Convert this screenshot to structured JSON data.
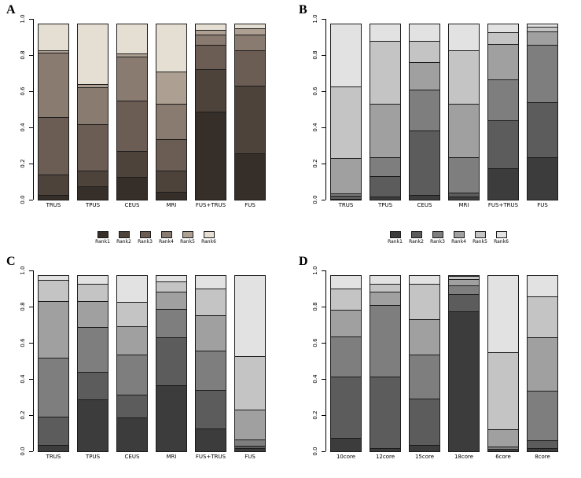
{
  "legend": {
    "labels": [
      "Rank1",
      "Rank2",
      "Rank3",
      "Rank4",
      "Rank5",
      "Rank6"
    ]
  },
  "palettes": {
    "brown": [
      "#352e29",
      "#4e433b",
      "#6b5d54",
      "#8a7b71",
      "#ada092",
      "#e4ded3"
    ],
    "gray": [
      "#3c3c3c",
      "#5c5c5c",
      "#7e7e7e",
      "#a0a0a0",
      "#c4c4c4",
      "#e2e2e2"
    ]
  },
  "chart_data": [
    {
      "type": "bar",
      "stacked": true,
      "panel": "A",
      "palette": "brown",
      "ylim": [
        0,
        1
      ],
      "yticks": [
        0,
        0.2,
        0.4,
        0.6,
        0.8,
        1
      ],
      "categories": [
        "TRUS",
        "TPUS",
        "CEUS",
        "MRI",
        "FUS+TRUS",
        "FUS"
      ],
      "series": [
        {
          "name": "Rank1",
          "values": [
            0.03,
            0.08,
            0.13,
            0.05,
            0.49,
            0.26
          ]
        },
        {
          "name": "Rank2",
          "values": [
            0.12,
            0.09,
            0.15,
            0.12,
            0.24,
            0.38
          ]
        },
        {
          "name": "Rank3",
          "values": [
            0.32,
            0.26,
            0.28,
            0.18,
            0.14,
            0.2
          ]
        },
        {
          "name": "Rank4",
          "values": [
            0.36,
            0.21,
            0.25,
            0.2,
            0.06,
            0.09
          ]
        },
        {
          "name": "Rank5",
          "values": [
            0.02,
            0.02,
            0.02,
            0.18,
            0.03,
            0.04
          ]
        },
        {
          "name": "Rank6",
          "values": [
            0.15,
            0.34,
            0.17,
            0.27,
            0.04,
            0.03
          ]
        }
      ]
    },
    {
      "type": "bar",
      "stacked": true,
      "panel": "B",
      "palette": "gray",
      "ylim": [
        0,
        1
      ],
      "yticks": [
        0,
        0.2,
        0.4,
        0.6,
        0.8,
        1
      ],
      "categories": [
        "TRUS",
        "TPUS",
        "CEUS",
        "MRI",
        "FUS+TRUS",
        "FUS"
      ],
      "series": [
        {
          "name": "Rank1",
          "values": [
            0.01,
            0.02,
            0.03,
            0.02,
            0.18,
            0.24
          ]
        },
        {
          "name": "Rank2",
          "values": [
            0.02,
            0.12,
            0.36,
            0.03,
            0.27,
            0.31
          ]
        },
        {
          "name": "Rank3",
          "values": [
            0.02,
            0.11,
            0.23,
            0.2,
            0.23,
            0.32
          ]
        },
        {
          "name": "Rank4",
          "values": [
            0.2,
            0.3,
            0.16,
            0.3,
            0.2,
            0.08
          ]
        },
        {
          "name": "Rank5",
          "values": [
            0.4,
            0.35,
            0.12,
            0.3,
            0.07,
            0.03
          ]
        },
        {
          "name": "Rank6",
          "values": [
            0.35,
            0.1,
            0.1,
            0.15,
            0.05,
            0.02
          ]
        }
      ]
    },
    {
      "type": "bar",
      "stacked": true,
      "panel": "C",
      "palette": "gray",
      "ylim": [
        0,
        1
      ],
      "yticks": [
        0,
        0.2,
        0.4,
        0.6,
        0.8,
        1
      ],
      "categories": [
        "TRUS",
        "TPUS",
        "CEUS",
        "MRI",
        "FUS+TRUS",
        "FUS"
      ],
      "series": [
        {
          "name": "Rank1",
          "values": [
            0.04,
            0.29,
            0.19,
            0.37,
            0.13,
            0.02
          ]
        },
        {
          "name": "Rank2",
          "values": [
            0.16,
            0.16,
            0.13,
            0.27,
            0.22,
            0.02
          ]
        },
        {
          "name": "Rank3",
          "values": [
            0.33,
            0.25,
            0.23,
            0.16,
            0.22,
            0.04
          ]
        },
        {
          "name": "Rank4",
          "values": [
            0.32,
            0.15,
            0.16,
            0.1,
            0.2,
            0.17
          ]
        },
        {
          "name": "Rank5",
          "values": [
            0.12,
            0.1,
            0.14,
            0.06,
            0.15,
            0.3
          ]
        },
        {
          "name": "Rank6",
          "values": [
            0.03,
            0.05,
            0.15,
            0.04,
            0.08,
            0.45
          ]
        }
      ]
    },
    {
      "type": "bar",
      "stacked": true,
      "panel": "D",
      "palette": "gray",
      "ylim": [
        0,
        1
      ],
      "yticks": [
        0,
        0.2,
        0.4,
        0.6,
        0.8,
        1
      ],
      "categories": [
        "10core",
        "12core",
        "15core",
        "18core",
        "6core",
        "8core"
      ],
      "series": [
        {
          "name": "Rank1",
          "values": [
            0.08,
            0.02,
            0.04,
            0.78,
            0.01,
            0.02
          ]
        },
        {
          "name": "Rank2",
          "values": [
            0.34,
            0.4,
            0.26,
            0.1,
            0.01,
            0.05
          ]
        },
        {
          "name": "Rank3",
          "values": [
            0.23,
            0.4,
            0.25,
            0.05,
            0.02,
            0.28
          ]
        },
        {
          "name": "Rank4",
          "values": [
            0.15,
            0.08,
            0.2,
            0.04,
            0.1,
            0.3
          ]
        },
        {
          "name": "Rank5",
          "values": [
            0.12,
            0.05,
            0.2,
            0.02,
            0.43,
            0.23
          ]
        },
        {
          "name": "Rank6",
          "values": [
            0.08,
            0.05,
            0.05,
            0.01,
            0.43,
            0.12
          ]
        }
      ]
    }
  ]
}
